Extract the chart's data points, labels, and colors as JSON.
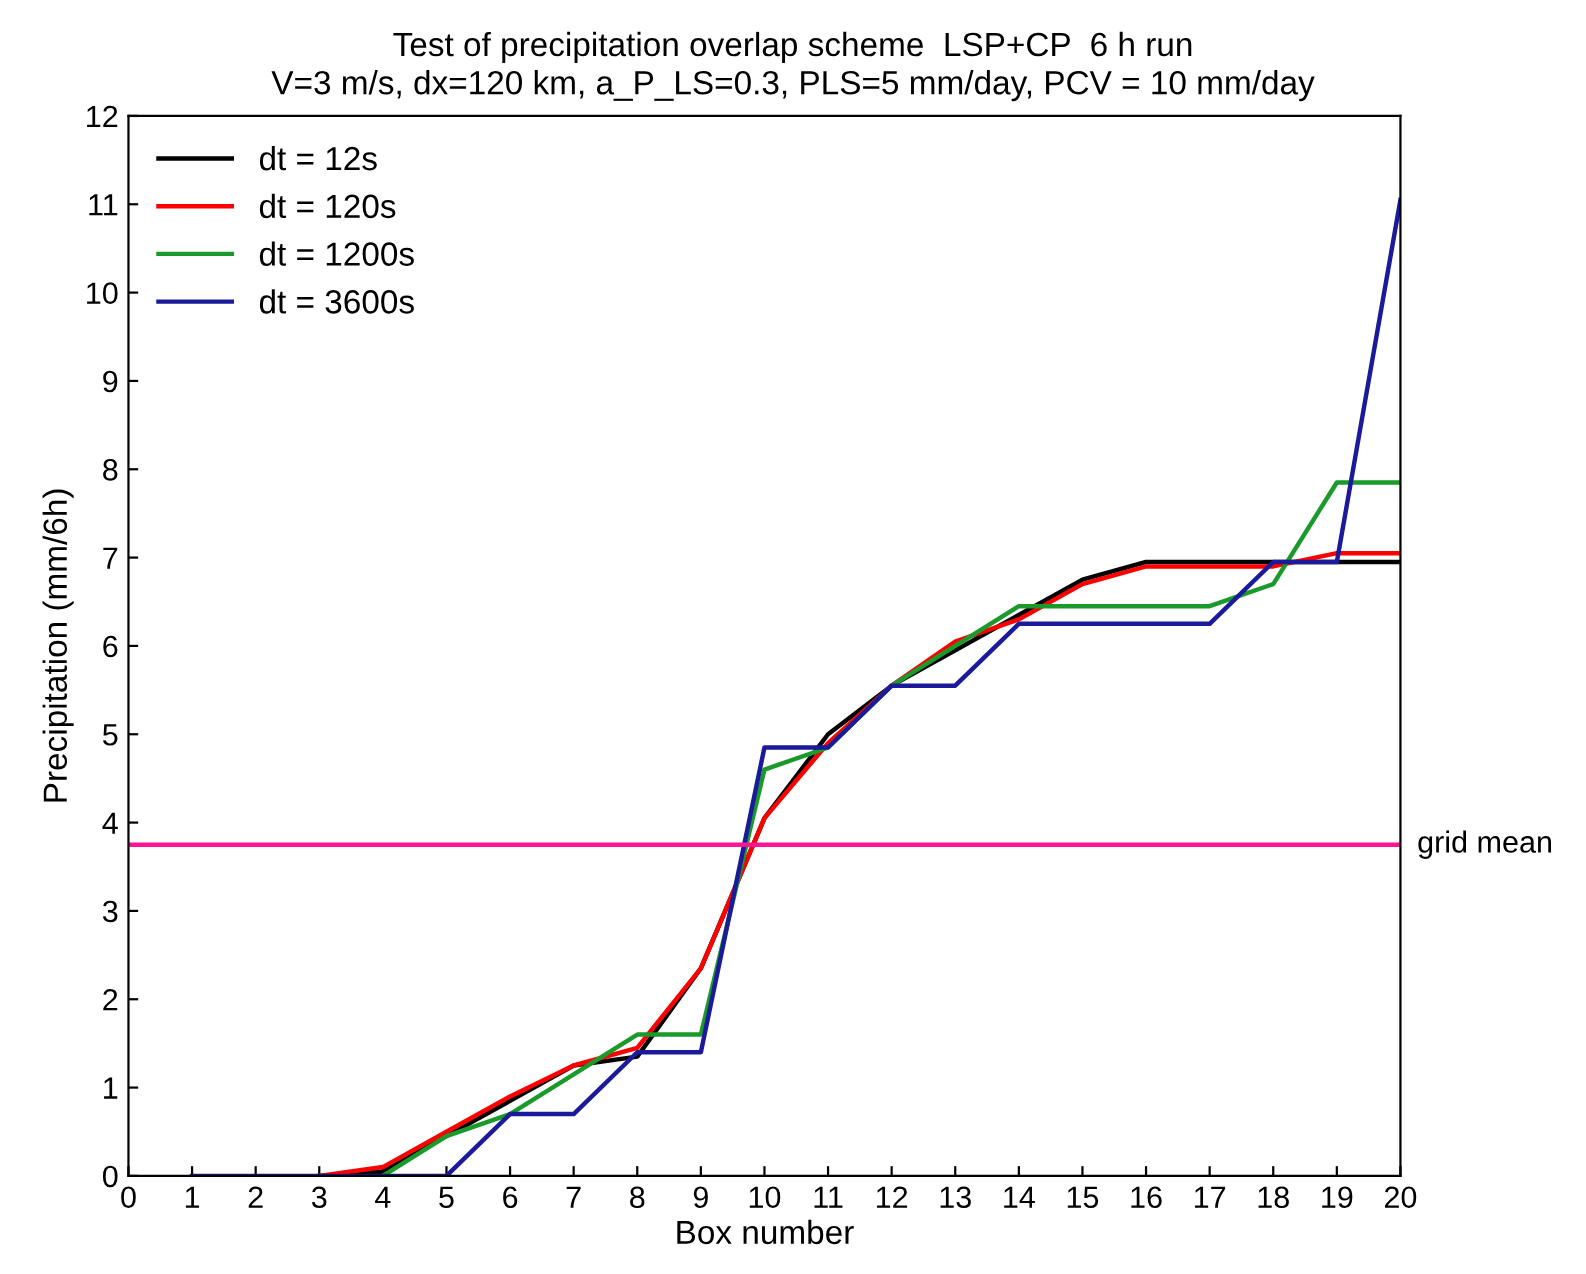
{
  "chart_data": {
    "type": "line",
    "title": "Test of precipitation overlap scheme  LSP+CP  6 h run",
    "subtitle": "V=3 m/s, dx=120 km, a_P_LS=0.3, PLS=5 mm/day, PCV = 10 mm/day",
    "xlabel": "Box number",
    "ylabel": "Precipitation (mm/6h)",
    "x": [
      1,
      2,
      3,
      4,
      5,
      6,
      7,
      8,
      9,
      10,
      11,
      12,
      13,
      14,
      15,
      16,
      17,
      18,
      19,
      20
    ],
    "series": [
      {
        "name": "dt = 12s",
        "color": "#000000",
        "values": [
          null,
          null,
          0,
          0.05,
          0.45,
          0.85,
          1.25,
          1.35,
          2.35,
          4.05,
          5.0,
          5.55,
          5.95,
          6.35,
          6.75,
          6.95,
          6.95,
          6.95,
          6.95,
          6.95
        ]
      },
      {
        "name": "dt = 120s",
        "color": "#ff0000",
        "values": [
          null,
          null,
          0,
          0.1,
          0.5,
          0.9,
          1.25,
          1.45,
          2.35,
          4.05,
          4.9,
          5.55,
          6.05,
          6.3,
          6.7,
          6.9,
          6.9,
          6.9,
          7.05,
          7.05
        ]
      },
      {
        "name": "dt = 1200s",
        "color": "#1a9a2a",
        "values": [
          null,
          null,
          null,
          0,
          0.45,
          0.7,
          1.15,
          1.6,
          1.6,
          4.6,
          4.85,
          5.55,
          6.0,
          6.45,
          6.45,
          6.45,
          6.45,
          6.7,
          7.85,
          7.85
        ]
      },
      {
        "name": "dt = 3600s",
        "color": "#1a1a9a",
        "values": [
          0,
          0,
          0,
          0,
          0,
          0.7,
          0.7,
          1.4,
          1.4,
          4.85,
          4.85,
          5.55,
          5.55,
          6.25,
          6.25,
          6.25,
          6.25,
          6.95,
          6.95,
          11.05
        ]
      }
    ],
    "xlim": [
      0,
      20
    ],
    "xticks": [
      0,
      1,
      2,
      3,
      4,
      5,
      6,
      7,
      8,
      9,
      10,
      11,
      12,
      13,
      14,
      15,
      16,
      17,
      18,
      19,
      20
    ],
    "ylim": [
      0,
      12
    ],
    "yticks": [
      0,
      1,
      2,
      3,
      4,
      5,
      6,
      7,
      8,
      9,
      10,
      11,
      12
    ],
    "ref_lines": [
      {
        "axis": "y",
        "value": 3.75,
        "label": "grid mean",
        "color": "#ff1493"
      }
    ],
    "legend": "top left",
    "grid": false,
    "marker": "none",
    "line_style": "solid"
  }
}
